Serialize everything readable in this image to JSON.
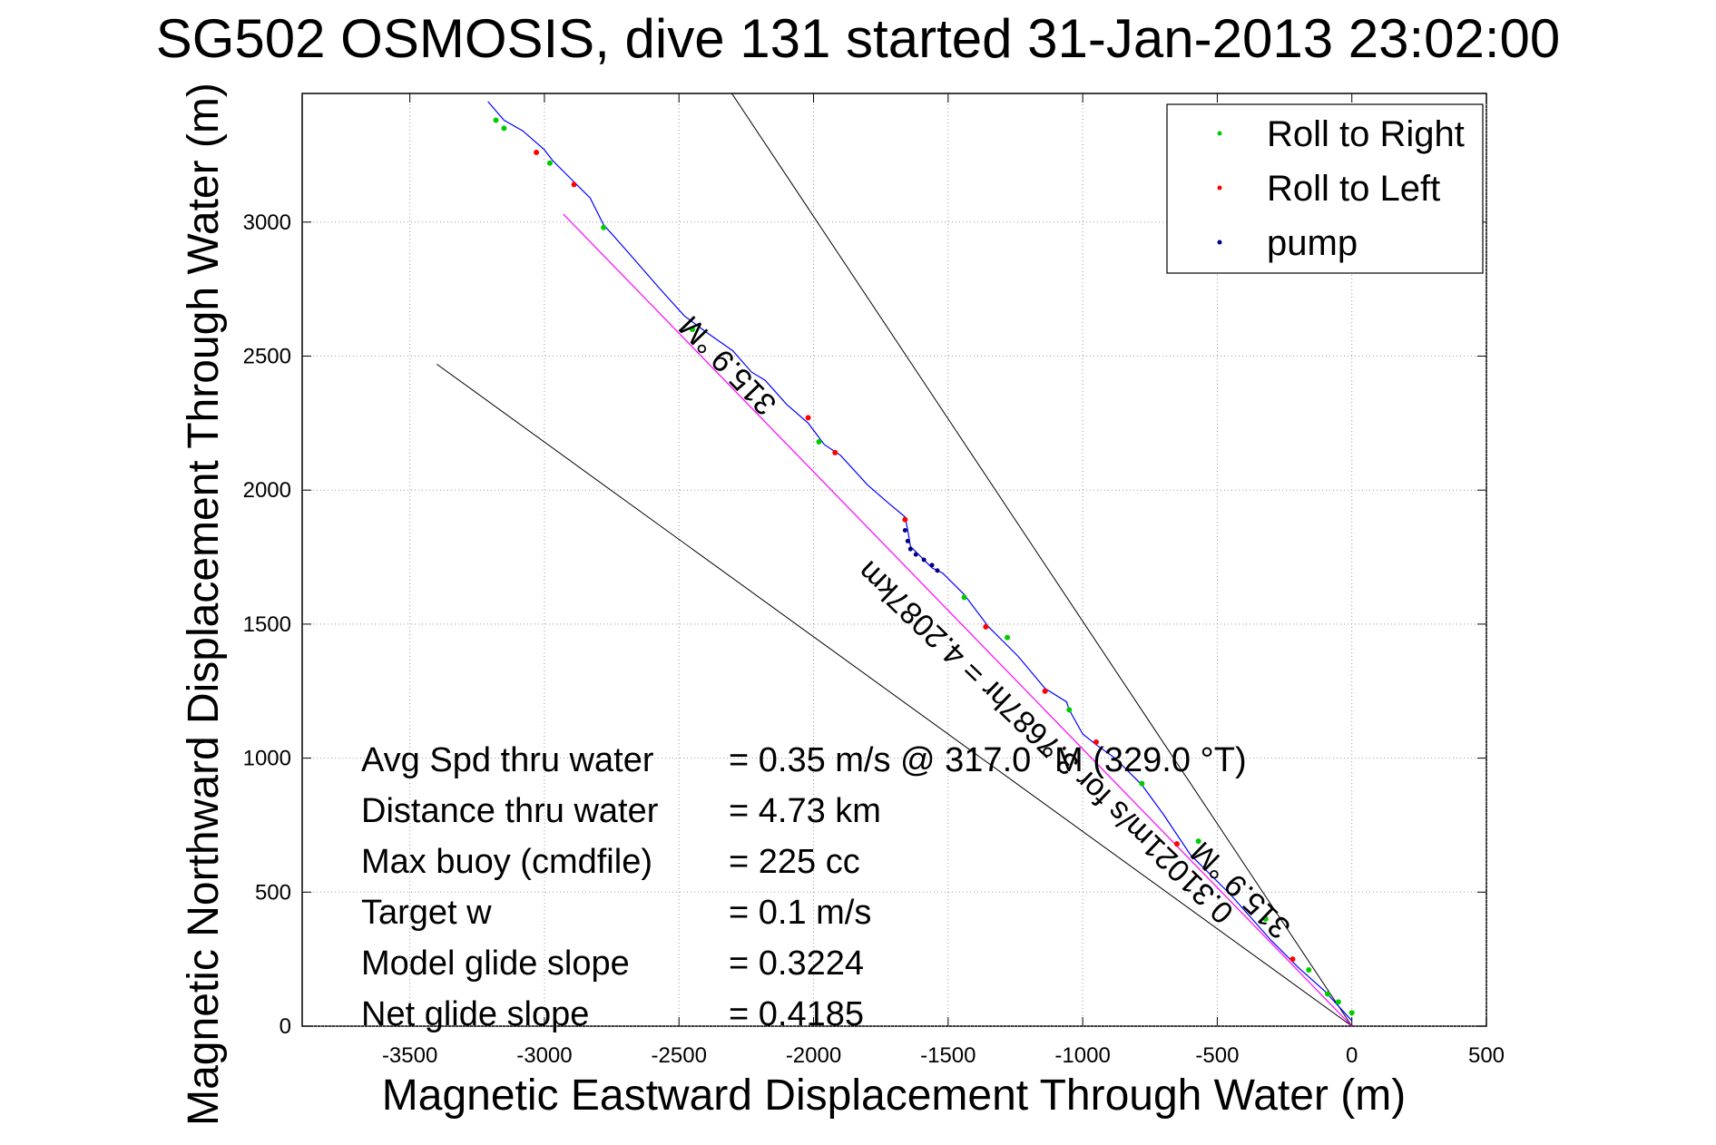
{
  "chart_data": {
    "type": "line",
    "title": "SG502 OSMOSIS, dive 131 started 31-Jan-2013 23:02:00",
    "xlabel": "Magnetic Eastward Displacement Through Water (m)",
    "ylabel": "Magnetic Northward Displacement Through Water (m)",
    "xlim": [
      -3900,
      500
    ],
    "ylim": [
      0,
      3480
    ],
    "xticks": [
      -3500,
      -3000,
      -2500,
      -2000,
      -1500,
      -1000,
      -500,
      0,
      500
    ],
    "yticks": [
      0,
      500,
      1000,
      1500,
      2000,
      2500,
      3000
    ],
    "xtick_labels": [
      "-3500",
      "-3000",
      "-2500",
      "-2000",
      "-1500",
      "-1000",
      "-500",
      "0",
      "500"
    ],
    "ytick_labels": [
      "0",
      "500",
      "1000",
      "1500",
      "2000",
      "2500",
      "3000"
    ],
    "grid": true,
    "legend_position": "top-right",
    "legend": [
      {
        "label": "Roll to Right",
        "color": "#00cc00"
      },
      {
        "label": "Roll to Left",
        "color": "#ff0000"
      },
      {
        "label": "pump",
        "color": "#000080"
      }
    ],
    "track": {
      "color": "#0000ff",
      "x": [
        0,
        -100,
        -200,
        -300,
        -450,
        -600,
        -700,
        -780,
        -880,
        -950,
        -1000,
        -1050,
        -1060,
        -1140,
        -1240,
        -1300,
        -1350,
        -1440,
        -1520,
        -1560,
        -1600,
        -1640,
        -1650,
        -1660,
        -1720,
        -1800,
        -1900,
        -1960,
        -2020,
        -2100,
        -2180,
        -2230,
        -2300,
        -2400,
        -2480,
        -2570,
        -2700,
        -2780,
        -2830,
        -2870,
        -2920,
        -2970,
        -3000,
        -3080,
        -3150,
        -3210
      ],
      "y": [
        20,
        130,
        220,
        320,
        490,
        640,
        790,
        900,
        1000,
        1050,
        1090,
        1180,
        1210,
        1260,
        1380,
        1440,
        1490,
        1610,
        1690,
        1710,
        1750,
        1790,
        1850,
        1900,
        1950,
        2020,
        2130,
        2170,
        2250,
        2320,
        2410,
        2440,
        2520,
        2590,
        2650,
        2750,
        2900,
        2990,
        3090,
        3130,
        3180,
        3230,
        3270,
        3340,
        3380,
        3450
      ]
    },
    "heading_line": {
      "color": "#ff00ff",
      "x": [
        0,
        -2930
      ],
      "y": [
        0,
        3030
      ]
    },
    "envelope_lines": {
      "color": "#000000",
      "lines": [
        {
          "x": [
            0,
            -2350
          ],
          "y": [
            0,
            3550
          ]
        },
        {
          "x": [
            0,
            -3400
          ],
          "y": [
            0,
            2470
          ]
        }
      ]
    },
    "roll_right_points": {
      "x": [
        0,
        -50,
        -90,
        -160,
        -320,
        -570,
        -780,
        -1050,
        -1280,
        -1440,
        -1980,
        -2450,
        -2780,
        -2980,
        -3150,
        -3180
      ],
      "y": [
        50,
        90,
        120,
        210,
        400,
        690,
        905,
        1180,
        1450,
        1600,
        2180,
        2600,
        2980,
        3220,
        3350,
        3380
      ]
    },
    "roll_left_points": {
      "x": [
        -220,
        -650,
        -950,
        -1140,
        -1360,
        -1660,
        -2020,
        -1920,
        -2890,
        -3030
      ],
      "y": [
        250,
        680,
        1060,
        1250,
        1490,
        1890,
        2270,
        2140,
        3140,
        3260
      ]
    },
    "pump_points": {
      "x": [
        -1660,
        -1650,
        -1640,
        -1620,
        -1590,
        -1560,
        -1540
      ],
      "y": [
        1850,
        1810,
        1780,
        1760,
        1740,
        1720,
        1700
      ]
    },
    "annotations": {
      "heading_label_top": "315.9 °M",
      "heading_label_bottom": "315.9 °M",
      "speed_label": "0.31021m/s for 3.7687hr = 4.2087km"
    },
    "stats": [
      {
        "label": "Avg Spd thru water",
        "value": "=  0.35 m/s @ 317.0 °M (329.0 °T)"
      },
      {
        "label": "Distance thru water",
        "value": "=  4.73 km"
      },
      {
        "label": "Max buoy (cmdfile)",
        "value": "= 225 cc"
      },
      {
        "label": "Target w",
        "value": "= 0.1 m/s"
      },
      {
        "label": "Model glide slope",
        "value": "= 0.3224"
      },
      {
        "label": "Net glide slope",
        "value": "= 0.4185"
      }
    ]
  }
}
